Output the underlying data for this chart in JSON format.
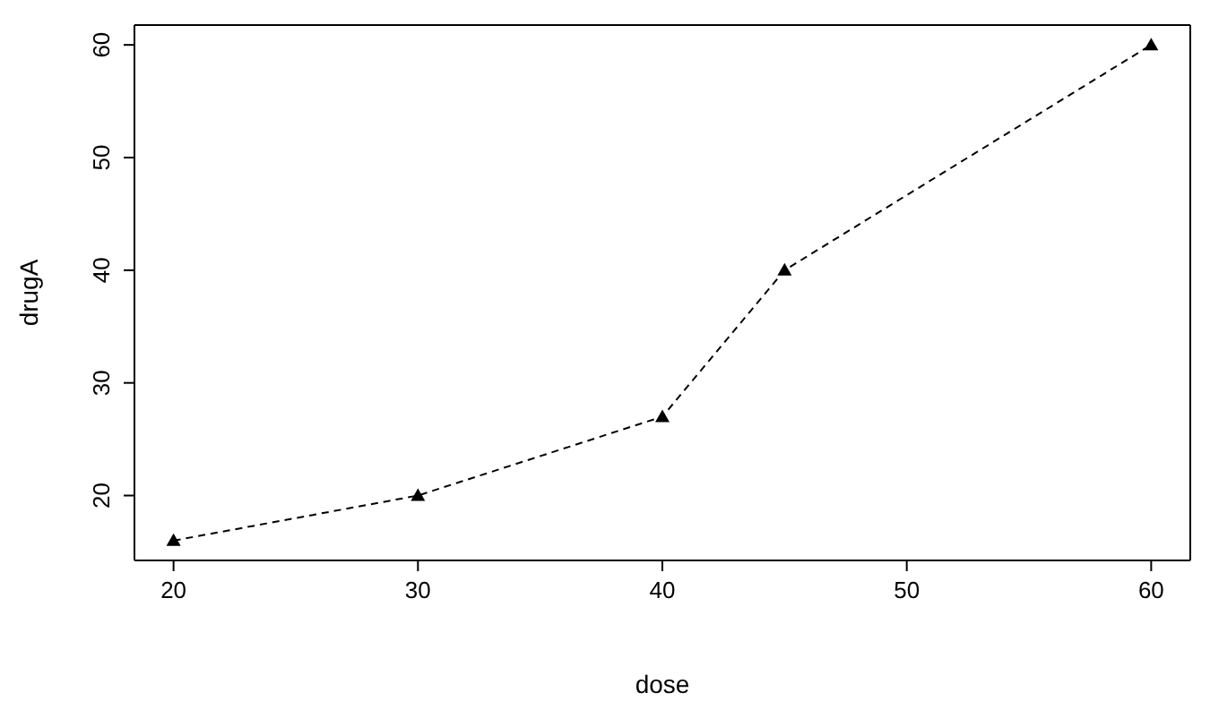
{
  "chart_data": {
    "type": "line",
    "xlabel": "dose",
    "ylabel": "drugA",
    "x": [
      20,
      30,
      40,
      45,
      60
    ],
    "series": [
      {
        "color": "#000000",
        "values": [
          16,
          20,
          27,
          40,
          60
        ]
      }
    ],
    "xlim": [
      18.4,
      61.6
    ],
    "xticks": [
      20,
      30,
      40,
      50,
      60
    ],
    "ylim": [
      14.24,
      61.76
    ],
    "yticks": [
      20,
      30,
      40,
      50,
      60
    ],
    "marker": "triangle",
    "line_style": "dashed",
    "grid": false
  }
}
